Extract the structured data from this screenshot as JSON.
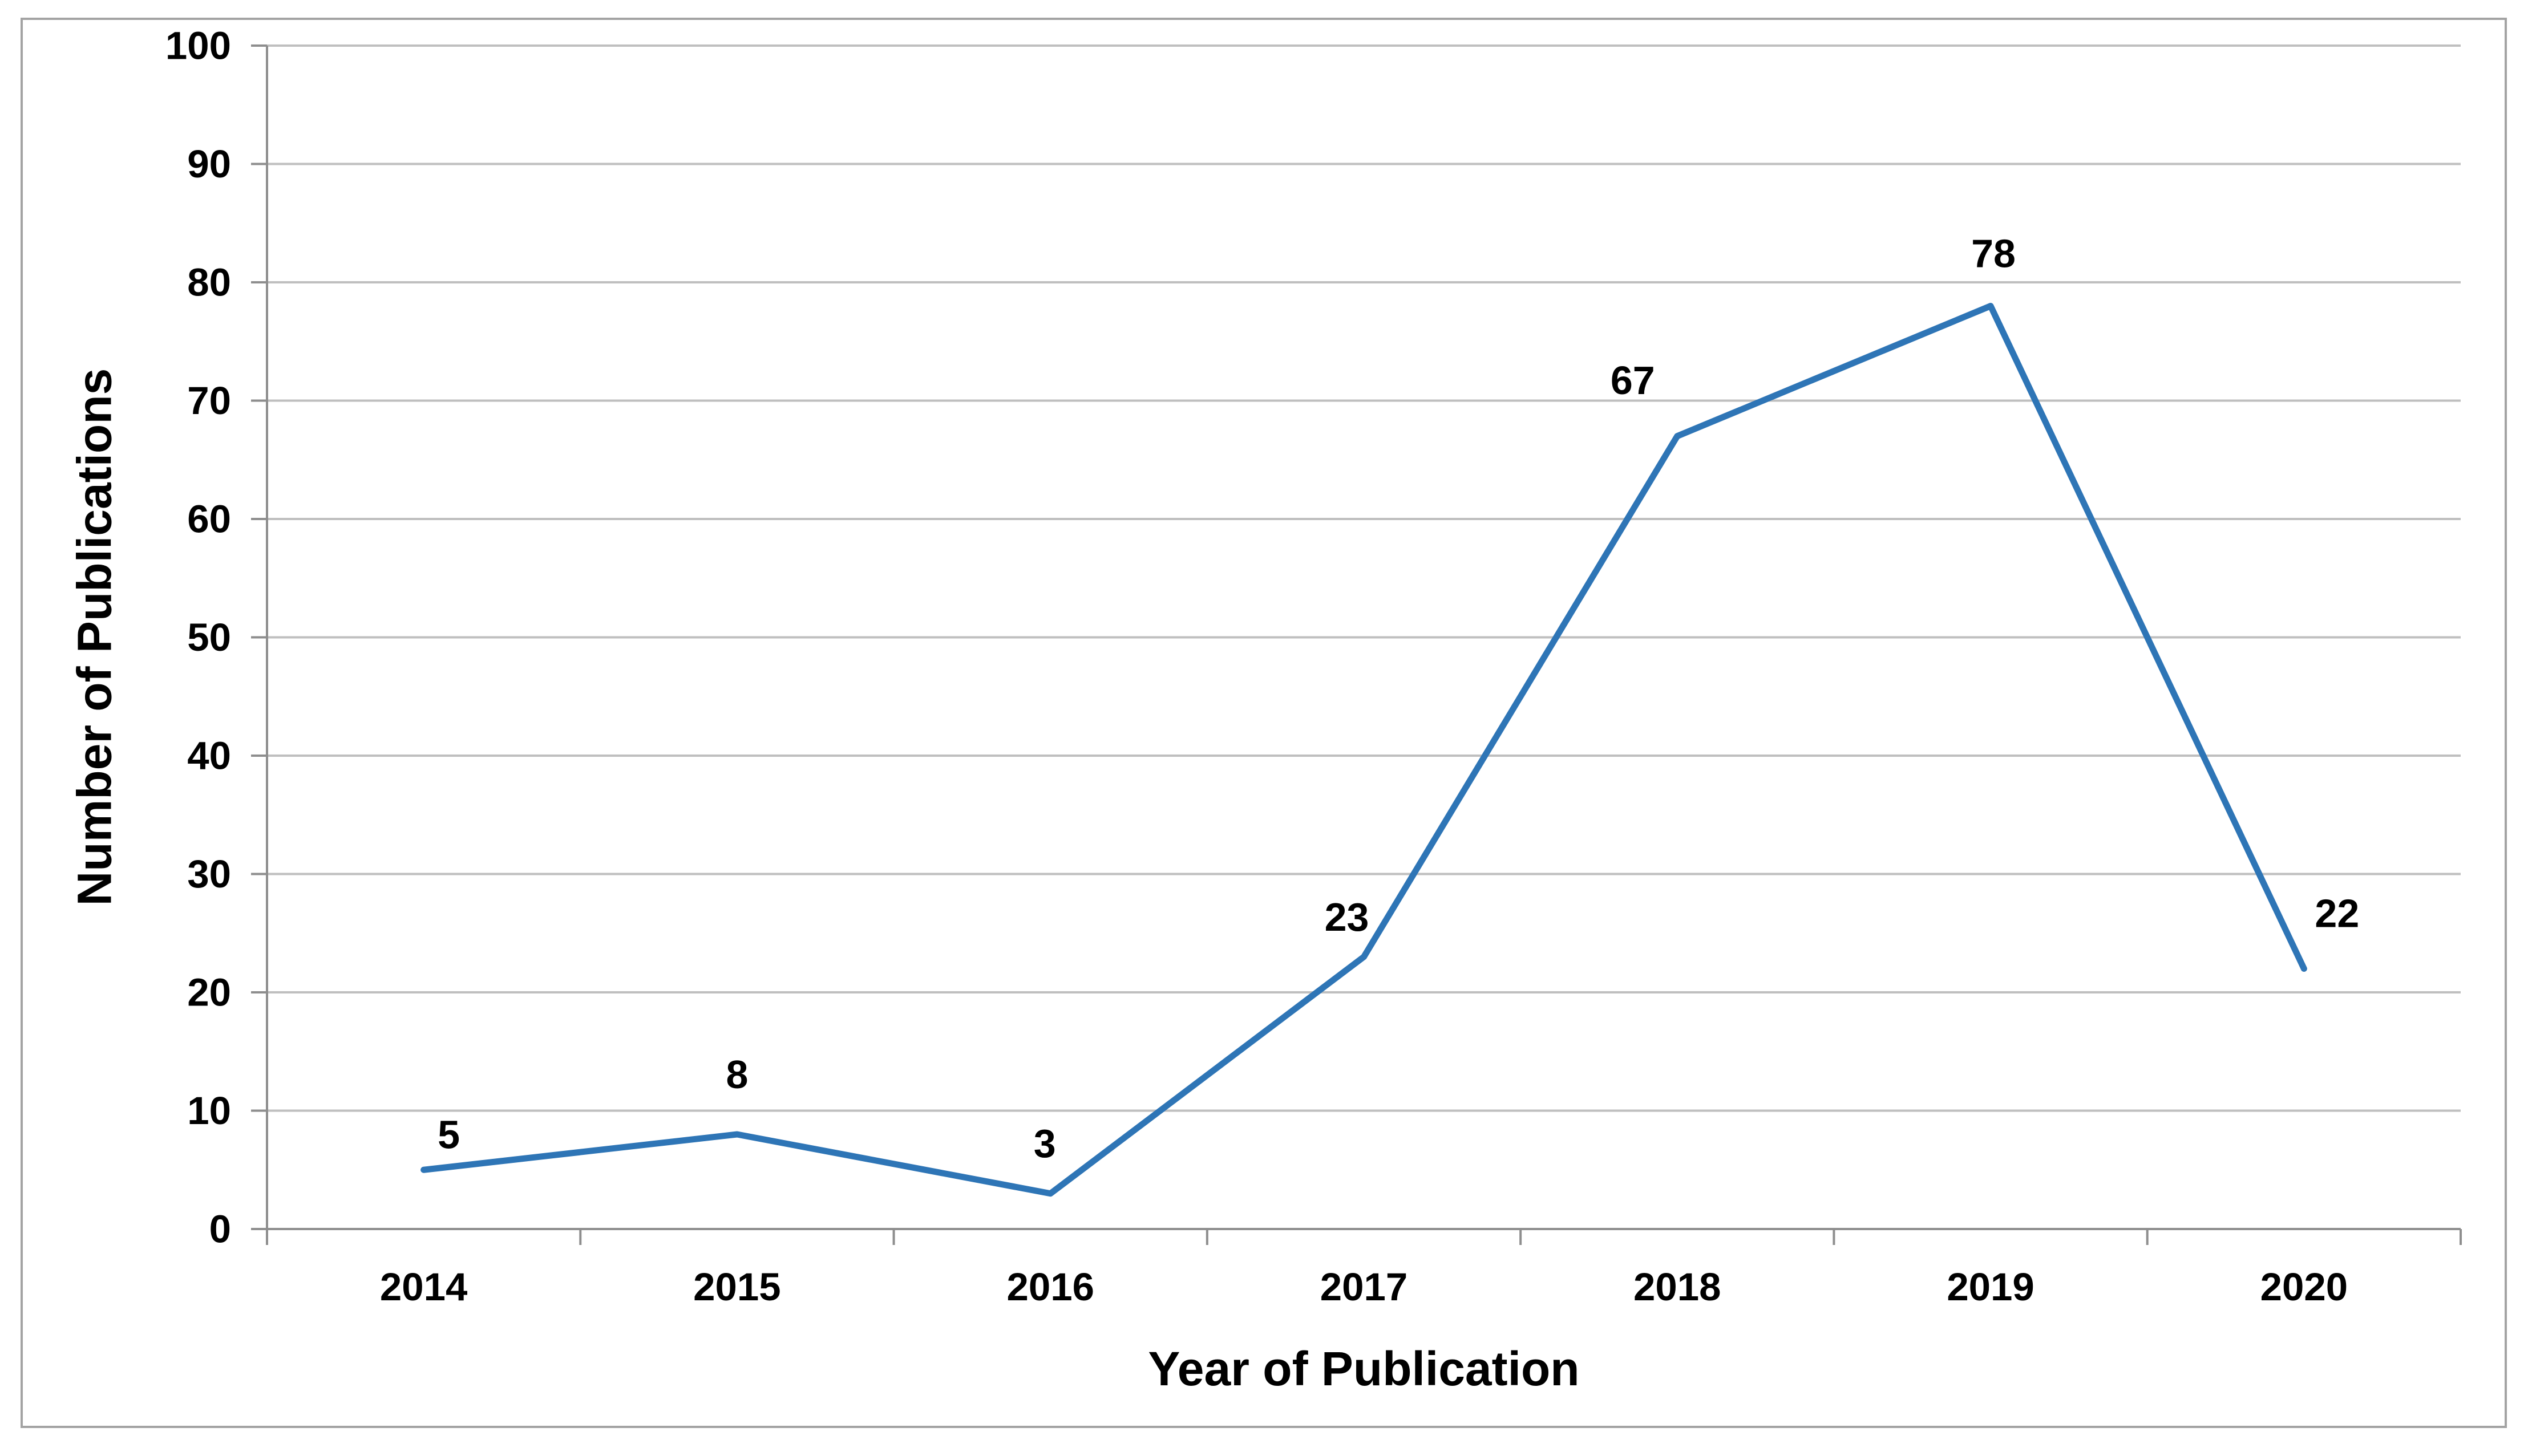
{
  "chart_data": {
    "type": "line",
    "title": "",
    "categories": [
      "2014",
      "2015",
      "2016",
      "2017",
      "2018",
      "2019",
      "2020"
    ],
    "series": [
      {
        "name": "Number of Publications",
        "values": [
          5,
          8,
          3,
          23,
          67,
          78,
          22
        ]
      }
    ],
    "data_labels": [
      "5",
      "8",
      "3",
      "23",
      "67",
      "78",
      "22"
    ],
    "xlabel": "Year of Publication",
    "ylabel": "Number of Publications",
    "ylim": [
      0,
      100
    ],
    "ytick_step": 10,
    "yticks": [
      "0",
      "10",
      "20",
      "30",
      "40",
      "50",
      "60",
      "70",
      "80",
      "90",
      "100"
    ],
    "grid": true,
    "legend": "none",
    "colors": {
      "line": "#2E75B6",
      "gridline": "#BFBFBF",
      "axis": "#8E8E8E",
      "border": "#A3A3A3",
      "label_text": "#000000"
    }
  }
}
